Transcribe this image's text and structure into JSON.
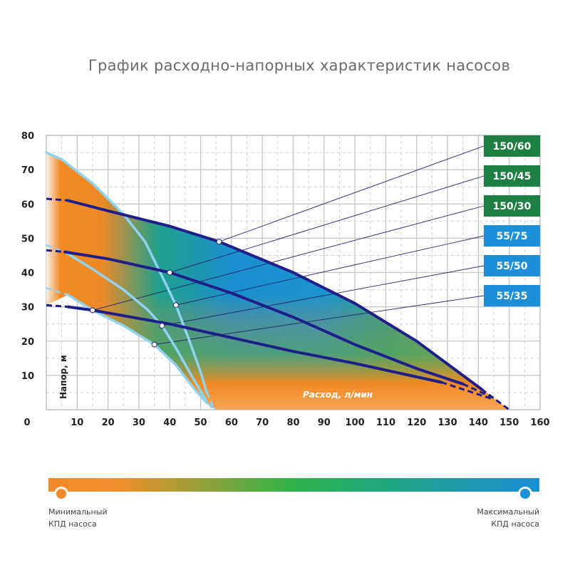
{
  "chart_data": {
    "type": "line",
    "title": "График расходно-напорных характеристик насосов",
    "xlabel": "Расход, л/мин",
    "ylabel": "Напор, м",
    "xlim": [
      0,
      160
    ],
    "ylim": [
      0,
      80
    ],
    "x_ticks": [
      0,
      10,
      20,
      30,
      40,
      50,
      60,
      70,
      80,
      90,
      100,
      110,
      120,
      130,
      140,
      150,
      160
    ],
    "y_ticks": [
      10,
      20,
      30,
      40,
      50,
      60,
      70,
      80
    ],
    "grid": true,
    "legend_position": "right",
    "series": [
      {
        "name": "150/60",
        "label_color": "#1e7f43",
        "line_color": "#1f1f8a",
        "dashed_start": [
          [
            0,
            61.5
          ],
          [
            7,
            61
          ]
        ],
        "points": [
          [
            7,
            61
          ],
          [
            20,
            58
          ],
          [
            40,
            53.5
          ],
          [
            56,
            49
          ],
          [
            80,
            40
          ],
          [
            100,
            31
          ],
          [
            120,
            20
          ],
          [
            135,
            10
          ],
          [
            141,
            6
          ]
        ],
        "dashed_end": [
          [
            141,
            6
          ],
          [
            150,
            0
          ]
        ],
        "marker": [
          56,
          49
        ]
      },
      {
        "name": "150/45",
        "label_color": "#1e7f43",
        "line_color": "#1f1f8a",
        "dashed_start": [
          [
            0,
            46.5
          ],
          [
            6,
            46
          ]
        ],
        "points": [
          [
            6,
            46
          ],
          [
            20,
            44
          ],
          [
            40,
            40
          ],
          [
            60,
            34
          ],
          [
            80,
            27
          ],
          [
            100,
            19
          ],
          [
            120,
            12
          ],
          [
            135,
            7.5
          ]
        ],
        "dashed_end": [
          [
            135,
            7.5
          ],
          [
            146,
            3
          ]
        ],
        "marker": [
          40,
          40
        ]
      },
      {
        "name": "150/30",
        "label_color": "#1e7f43",
        "line_color": "#1f1f8a",
        "dashed_start": [
          [
            0,
            30.5
          ],
          [
            7,
            30
          ]
        ],
        "points": [
          [
            7,
            30
          ],
          [
            15,
            29
          ],
          [
            40,
            25
          ],
          [
            60,
            21
          ],
          [
            80,
            17
          ],
          [
            100,
            13.5
          ],
          [
            128,
            8
          ]
        ],
        "dashed_end": [
          [
            128,
            8
          ],
          [
            145,
            3
          ]
        ],
        "marker": [
          15,
          29
        ]
      },
      {
        "name": "55/75",
        "label_color": "#1d8fd8",
        "line_color": "#8fd3f0",
        "dashed_start": [],
        "points": [
          [
            0,
            75
          ],
          [
            5,
            73
          ],
          [
            15,
            66
          ],
          [
            25,
            57
          ],
          [
            32,
            49
          ],
          [
            38,
            38
          ],
          [
            42,
            30.5
          ],
          [
            46,
            21
          ],
          [
            50,
            11
          ],
          [
            52,
            5
          ]
        ],
        "dashed_end": [
          [
            52,
            5
          ],
          [
            54,
            1
          ]
        ],
        "marker": [
          42,
          30.5
        ]
      },
      {
        "name": "55/50",
        "label_color": "#1d8fd8",
        "line_color": "#8fd3f0",
        "dashed_start": [
          [
            0,
            48
          ],
          [
            6,
            46
          ]
        ],
        "points": [
          [
            6,
            46
          ],
          [
            15,
            41
          ],
          [
            25,
            35
          ],
          [
            33,
            29
          ],
          [
            37.5,
            24.5
          ],
          [
            42,
            18
          ],
          [
            47,
            10
          ],
          [
            51,
            4
          ]
        ],
        "dashed_end": [
          [
            51,
            4
          ],
          [
            54,
            0
          ]
        ],
        "marker": [
          37.5,
          24.5
        ]
      },
      {
        "name": "55/35",
        "label_color": "#1d8fd8",
        "line_color": "#8fd3f0",
        "dashed_start": [
          [
            0,
            35.5
          ],
          [
            7,
            33.5
          ]
        ],
        "points": [
          [
            7,
            33.5
          ],
          [
            15,
            29
          ],
          [
            25,
            24.5
          ],
          [
            35,
            19
          ],
          [
            42,
            13
          ],
          [
            48,
            6
          ],
          [
            52,
            2
          ]
        ],
        "dashed_end": [
          [
            52,
            2
          ],
          [
            55,
            0
          ]
        ],
        "marker": [
          35,
          19
        ]
      }
    ],
    "efficiency_scale": {
      "min_label_1": "Минимальный",
      "min_label_2": "КПД насоса",
      "max_label_1": "Максимальный",
      "max_label_2": "КПД насоса",
      "min_color": "#f08a2a",
      "mid_color": "#2db34a",
      "max_color": "#1c8fd6"
    }
  }
}
